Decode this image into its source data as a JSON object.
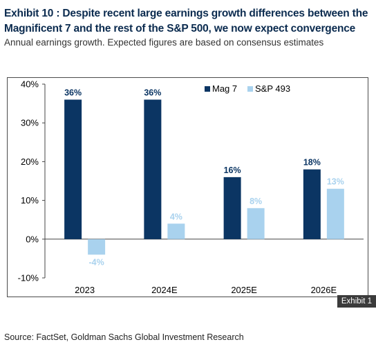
{
  "title": "Exhibit 10 : Despite recent large earnings growth differences between the Magnificent 7 and the rest of the S&P 500, we now expect convergence",
  "subtitle": "Annual earnings growth. Expected figures are based on consensus estimates",
  "badge": "Exhibit 1",
  "source": "Source: FactSet, Goldman Sachs Global Investment Research",
  "colors": {
    "mag7": "#0b3563",
    "sp493": "#a9d2ee"
  },
  "chart_data": {
    "type": "bar",
    "categories": [
      "2023",
      "2024E",
      "2025E",
      "2026E"
    ],
    "series": [
      {
        "name": "Mag 7",
        "values": [
          36,
          36,
          16,
          18
        ],
        "labels": [
          "36%",
          "36%",
          "16%",
          "18%"
        ]
      },
      {
        "name": "S&P 493",
        "values": [
          -4,
          4,
          8,
          13
        ],
        "labels": [
          "-4%",
          "4%",
          "8%",
          "13%"
        ]
      }
    ],
    "yticks": [
      40,
      30,
      20,
      10,
      0,
      -10
    ],
    "ytick_labels": [
      "40%",
      "30%",
      "20%",
      "10%",
      "0%",
      "-10%"
    ],
    "ylim": [
      -10,
      40
    ],
    "legend_position": "top-right",
    "grid": false
  }
}
